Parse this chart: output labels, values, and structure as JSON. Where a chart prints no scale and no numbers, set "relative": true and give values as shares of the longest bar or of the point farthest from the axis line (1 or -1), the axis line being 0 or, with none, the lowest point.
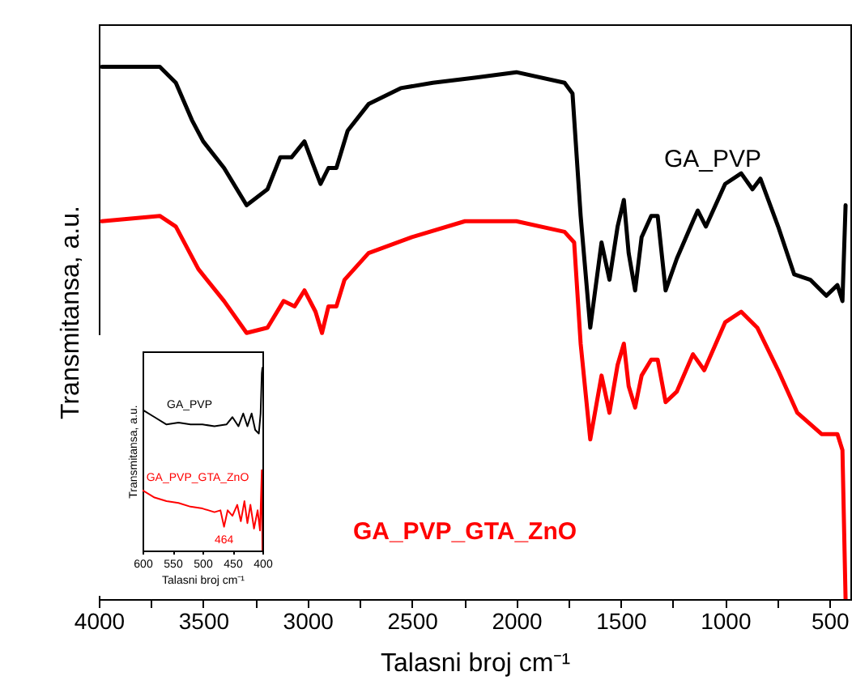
{
  "chart_data": [
    {
      "type": "line",
      "relative": true,
      "xlabel": "Talasni broj cm⁻¹",
      "ylabel": "Transmitansa, a.u.",
      "xlim": [
        4000,
        400
      ],
      "xticks": [
        4000,
        {
          "value": 3750,
          "label": null
        },
        3500,
        {
          "value": 3250,
          "label": null
        },
        3000,
        {
          "value": 2750,
          "label": null
        },
        2500,
        {
          "value": 2250,
          "label": null
        },
        2000,
        {
          "value": 1750,
          "label": null
        },
        1500,
        {
          "value": 1250,
          "label": null
        },
        1000,
        {
          "value": 750,
          "label": null
        },
        500
      ],
      "series": [
        {
          "name": "GA_PVP",
          "color": "#000000",
          "x": [
            3985,
            3708,
            3631,
            3554,
            3500,
            3400,
            3292,
            3192,
            3131,
            3077,
            3015,
            2977,
            2938,
            2900,
            2862,
            2808,
            2708,
            2554,
            2400,
            2192,
            2000,
            1769,
            1731,
            1692,
            1646,
            1592,
            1554,
            1515,
            1485,
            1462,
            1431,
            1400,
            1354,
            1323,
            1285,
            1231,
            1154,
            1131,
            1092,
            1000,
            923,
            869,
            831,
            746,
            669,
            592,
            515,
            462,
            438,
            423
          ],
          "values": [
            1.0,
            1.0,
            0.97,
            0.9,
            0.86,
            0.81,
            0.74,
            0.77,
            0.83,
            0.83,
            0.86,
            0.82,
            0.78,
            0.81,
            0.81,
            0.88,
            0.93,
            0.96,
            0.97,
            0.98,
            0.99,
            0.97,
            0.95,
            0.72,
            0.51,
            0.67,
            0.6,
            0.7,
            0.75,
            0.65,
            0.58,
            0.68,
            0.72,
            0.72,
            0.58,
            0.64,
            0.71,
            0.73,
            0.7,
            0.78,
            0.8,
            0.77,
            0.79,
            0.7,
            0.61,
            0.6,
            0.57,
            0.59,
            0.56,
            0.74
          ]
        },
        {
          "name": "GA_PVP_GTA_ZnO",
          "color": "#ff0000",
          "x": [
            3985,
            3708,
            3631,
            3523,
            3400,
            3292,
            3192,
            3115,
            3062,
            3015,
            2962,
            2931,
            2900,
            2862,
            2823,
            2708,
            2500,
            2246,
            2000,
            1769,
            1723,
            1692,
            1646,
            1592,
            1554,
            1515,
            1485,
            1462,
            1431,
            1400,
            1354,
            1323,
            1285,
            1231,
            1154,
            1100,
            1000,
            923,
            846,
            746,
            654,
            538,
            462,
            438,
            423
          ],
          "values": [
            0.71,
            0.72,
            0.7,
            0.62,
            0.56,
            0.5,
            0.51,
            0.56,
            0.55,
            0.58,
            0.54,
            0.5,
            0.55,
            0.55,
            0.6,
            0.65,
            0.68,
            0.71,
            0.71,
            0.69,
            0.67,
            0.48,
            0.3,
            0.42,
            0.35,
            0.44,
            0.48,
            0.4,
            0.36,
            0.42,
            0.45,
            0.45,
            0.37,
            0.39,
            0.46,
            0.43,
            0.52,
            0.54,
            0.51,
            0.43,
            0.35,
            0.31,
            0.31,
            0.28,
            0.0
          ]
        }
      ]
    },
    {
      "type": "line",
      "relative": true,
      "xlabel": "Talasni broj cm⁻¹",
      "ylabel": "Transmitansa, a.u.",
      "xlim": [
        600,
        400
      ],
      "xticks": [
        600,
        550,
        500,
        450,
        400
      ],
      "annotations": [
        {
          "text": "464",
          "x": 464,
          "y": 0.13
        }
      ],
      "series": [
        {
          "name": "GA_PVP",
          "color": "#000000",
          "x": [
            600,
            580,
            560,
            540,
            520,
            500,
            480,
            460,
            450,
            440,
            432,
            425,
            418,
            412,
            406,
            403,
            401,
            400
          ],
          "values": [
            0.77,
            0.73,
            0.69,
            0.7,
            0.69,
            0.69,
            0.68,
            0.69,
            0.73,
            0.68,
            0.75,
            0.68,
            0.75,
            0.66,
            0.64,
            0.75,
            0.97,
            1.0
          ]
        },
        {
          "name": "GA_PVP_GTA_ZnO",
          "color": "#ff0000",
          "x": [
            600,
            580,
            560,
            540,
            520,
            500,
            480,
            470,
            464,
            458,
            450,
            442,
            436,
            430,
            425,
            420,
            414,
            408,
            404,
            401,
            400
          ],
          "values": [
            0.33,
            0.29,
            0.27,
            0.26,
            0.24,
            0.23,
            0.21,
            0.22,
            0.13,
            0.22,
            0.19,
            0.25,
            0.16,
            0.27,
            0.15,
            0.25,
            0.12,
            0.22,
            0.11,
            0.44,
            0.0
          ]
        }
      ]
    }
  ]
}
